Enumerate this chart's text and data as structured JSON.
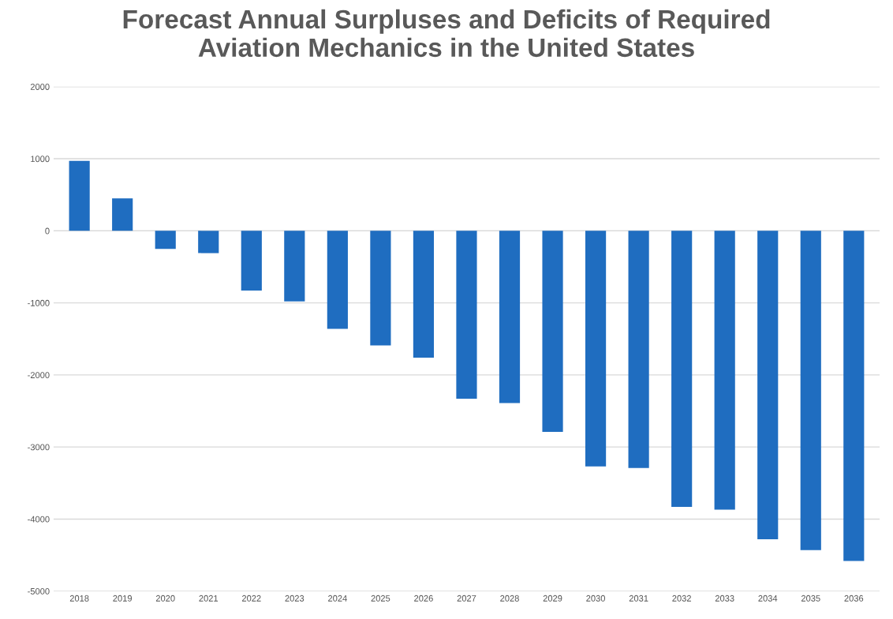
{
  "chart_data": {
    "type": "bar",
    "title": "Forecast Annual Surpluses and Deficits of Required\nAviation Mechanics in the United States",
    "categories": [
      "2018",
      "2019",
      "2020",
      "2021",
      "2022",
      "2023",
      "2024",
      "2025",
      "2026",
      "2027",
      "2028",
      "2029",
      "2030",
      "2031",
      "2032",
      "2033",
      "2034",
      "2035",
      "2036"
    ],
    "values": [
      970,
      450,
      -250,
      -310,
      -830,
      -980,
      -1360,
      -1590,
      -1760,
      -2330,
      -2390,
      -2790,
      -3270,
      -3290,
      -3830,
      -3870,
      -4280,
      -4430,
      -4580
    ],
    "color": "#1f6dc0",
    "ylim": [
      -5000,
      2000
    ],
    "yticks": [
      2000,
      1000,
      0,
      {
        "value": -1000,
        "label": "-1000"
      },
      {
        "value": -2000,
        "label": "-2000"
      },
      {
        "value": -3000,
        "label": "-3000"
      },
      {
        "value": -4000,
        "label": "-4000"
      },
      {
        "value": -5000,
        "label": "-5000"
      }
    ],
    "grid": "y"
  }
}
